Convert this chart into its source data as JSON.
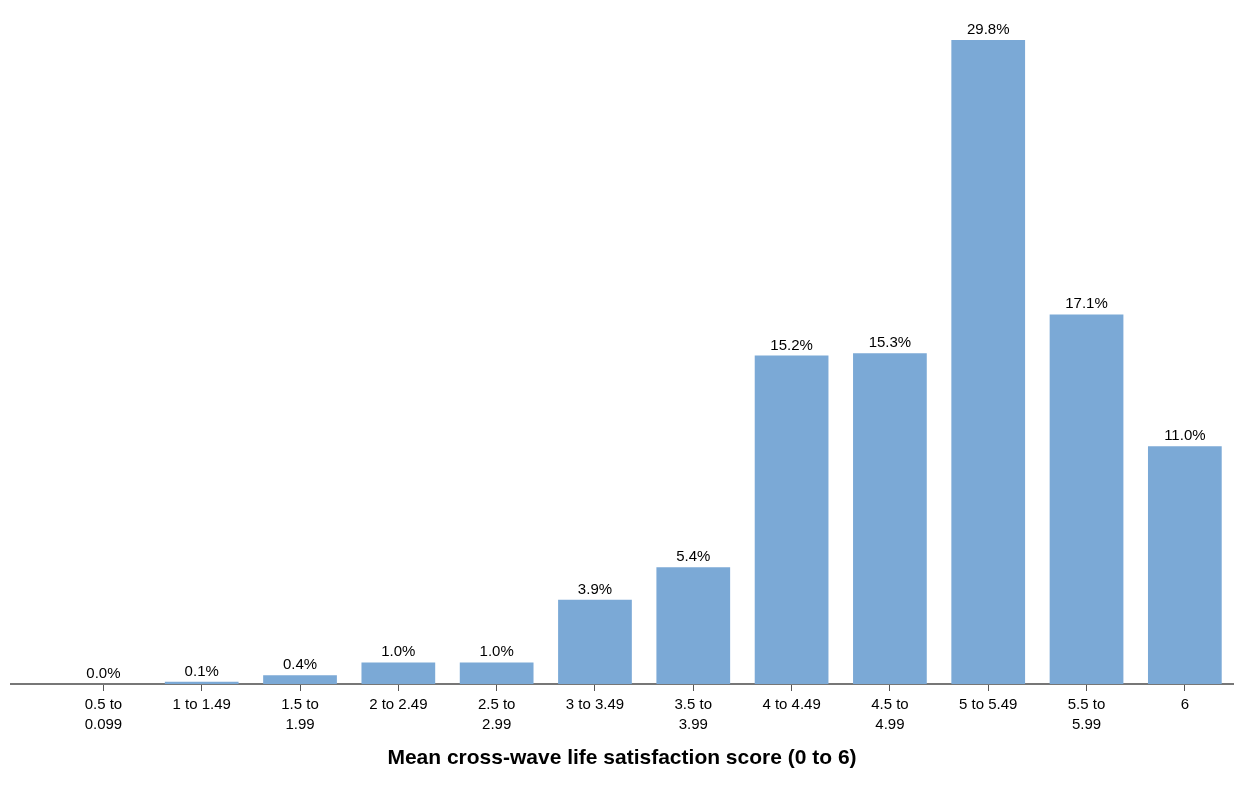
{
  "chart_data": {
    "type": "bar",
    "xlabel": "Mean cross-wave life satisfaction score (0 to 6)",
    "categories": [
      "0.5 to 0.099",
      "1 to 1.49",
      "1.5 to 1.99",
      "2 to 2.49",
      "2.5 to 2.99",
      "3 to 3.49",
      "3.5 to 3.99",
      "4 to 4.49",
      "4.5 to 4.99",
      "5 to 5.49",
      "5.5 to 5.99",
      "6"
    ],
    "values": [
      0.0,
      0.1,
      0.4,
      1.0,
      1.0,
      3.9,
      5.4,
      15.2,
      15.3,
      29.8,
      17.1,
      11.0
    ],
    "value_labels": [
      "0.0%",
      "0.1%",
      "0.4%",
      "1.0%",
      "1.0%",
      "3.9%",
      "5.4%",
      "15.2%",
      "15.3%",
      "29.8%",
      "17.1%",
      "11.0%"
    ],
    "color": "#7ba9d6",
    "grid": false,
    "legend": false
  }
}
